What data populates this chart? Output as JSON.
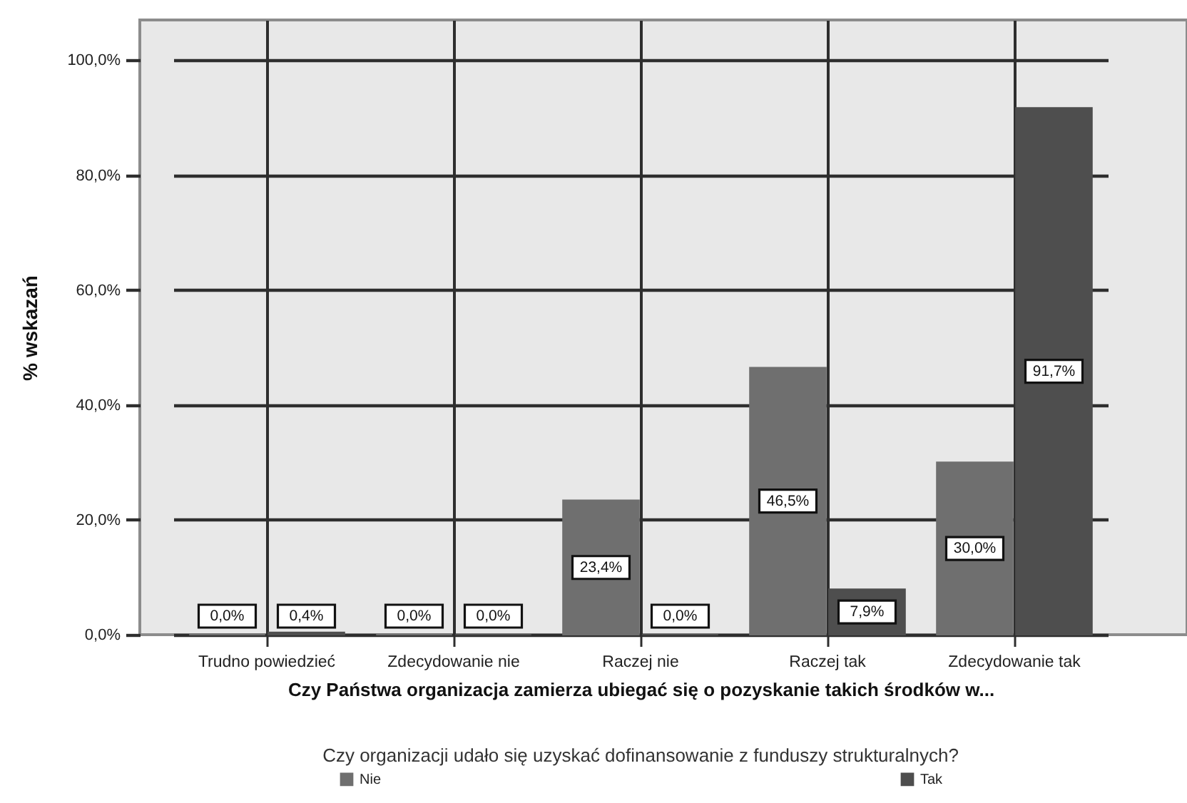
{
  "chart_data": {
    "type": "bar",
    "xlabel": "Czy Państwa organizacja zamierza ubiegać się o pozyskanie takich środków w...",
    "ylabel": "% wskazań",
    "legend_title": "Czy organizacji udało się uzyskać dofinansowanie z funduszy strukturalnych?",
    "categories": [
      "Trudno powiedzieć",
      "Zdecydowanie nie",
      "Raczej nie",
      "Raczej tak",
      "Zdecydowanie tak"
    ],
    "series": [
      {
        "name": "Nie",
        "color": "#6f6f6f",
        "values": [
          0.0,
          0.0,
          23.4,
          46.5,
          30.0
        ],
        "value_labels": [
          "0,0%",
          "0,0%",
          "23,4%",
          "46,5%",
          "30,0%"
        ]
      },
      {
        "name": "Tak",
        "color": "#4e4e4e",
        "values": [
          0.4,
          0.0,
          0.0,
          7.9,
          91.7
        ],
        "value_labels": [
          "0,4%",
          "0,0%",
          "0,0%",
          "7,9%",
          "91,7%"
        ]
      }
    ],
    "ylim": [
      0,
      107
    ],
    "yticks": [
      {
        "value": 0,
        "label": "0,0%"
      },
      {
        "value": 20,
        "label": "20,0%"
      },
      {
        "value": 40,
        "label": "40,0%"
      },
      {
        "value": 60,
        "label": "60,0%"
      },
      {
        "value": 80,
        "label": "80,0%"
      },
      {
        "value": 100,
        "label": "100,0%"
      }
    ],
    "grid": true,
    "legend": "bottom"
  }
}
